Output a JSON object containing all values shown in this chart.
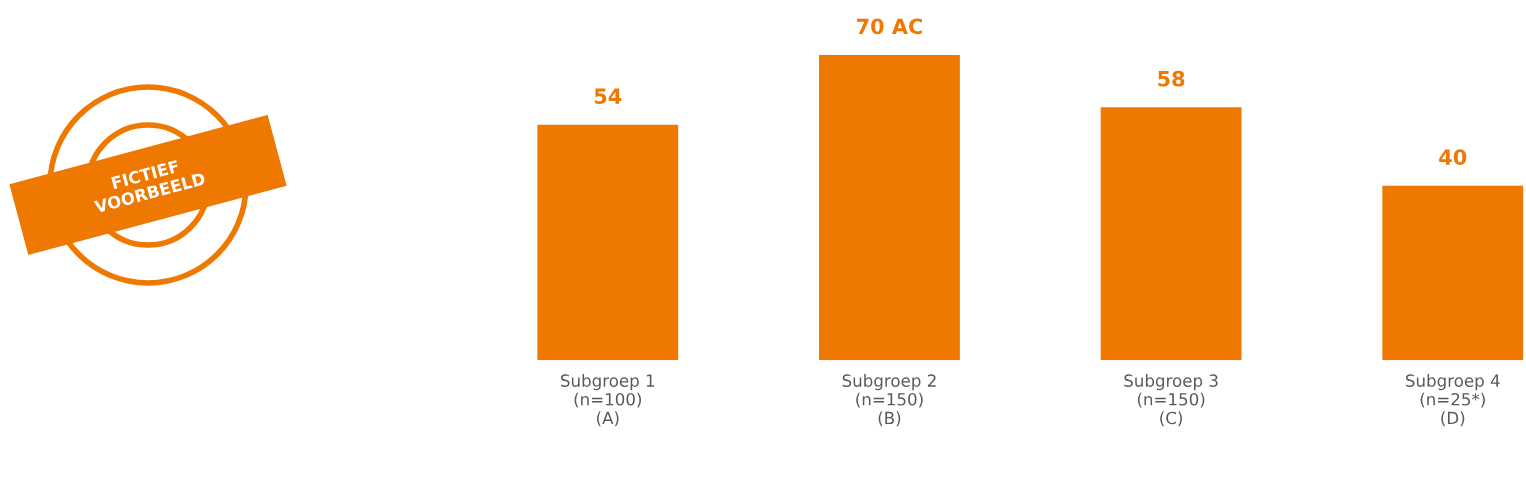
{
  "chart_data": {
    "type": "bar",
    "categories": [
      "Subgroep 1\n(n=100)\n(A)",
      "Subgroep 2\n(n=150)\n(B)",
      "Subgroep 3\n(n=150)\n(C)",
      "Subgroep 4\n(n=25*)\n(D)"
    ],
    "values": [
      54,
      70,
      58,
      40
    ],
    "value_labels": [
      "54",
      "70 AC",
      "58",
      "40"
    ],
    "color": "#ee7800",
    "tick_labels": "x",
    "grid": false,
    "legend": false,
    "annotations": [
      "FICTIEF\nVOORBEELD"
    ]
  }
}
